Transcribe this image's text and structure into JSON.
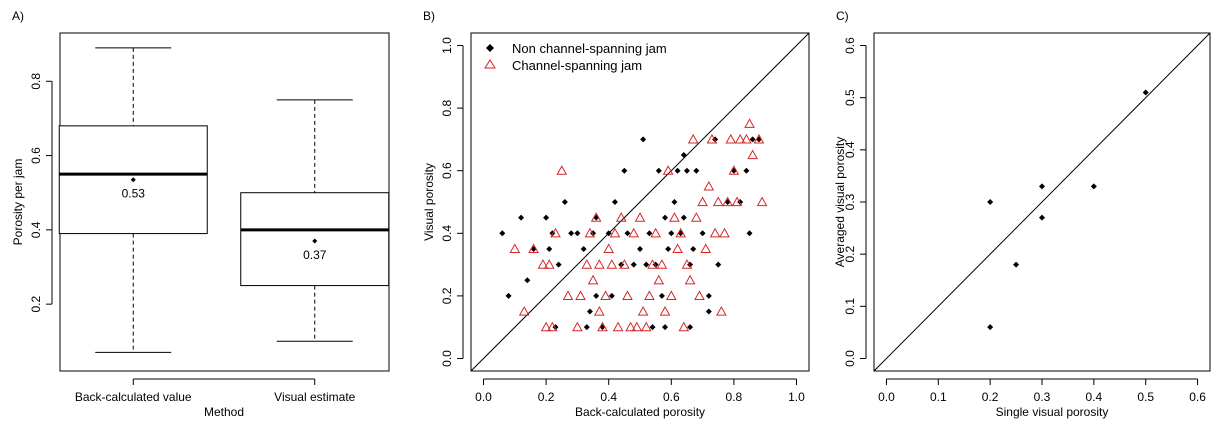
{
  "chart_data": [
    {
      "panel": "A)",
      "type": "box",
      "xlabel": "Method",
      "ylabel": "Porosity per jam",
      "ylim": [
        0.02,
        0.93
      ],
      "yticks": [
        0.2,
        0.4,
        0.6,
        0.8
      ],
      "categories": [
        "Back-calculated value",
        "Visual estimate"
      ],
      "boxes": [
        {
          "min": 0.07,
          "q1": 0.39,
          "median": 0.55,
          "q3": 0.68,
          "max": 0.89,
          "mean": 0.535,
          "mean_label": "0.53"
        },
        {
          "min": 0.1,
          "q1": 0.25,
          "median": 0.4,
          "q3": 0.5,
          "max": 0.75,
          "mean": 0.37,
          "mean_label": "0.37"
        }
      ]
    },
    {
      "panel": "B)",
      "type": "scatter",
      "xlabel": "Back-calculated porosity",
      "ylabel": "Visual porosity",
      "xlim": [
        -0.04,
        1.04
      ],
      "ylim": [
        -0.04,
        1.04
      ],
      "xticks": [
        0.0,
        0.2,
        0.4,
        0.6,
        0.8,
        1.0
      ],
      "yticks": [
        0.0,
        0.2,
        0.4,
        0.6,
        0.8,
        1.0
      ],
      "legend": {
        "position": "top-left",
        "entries": [
          "Non channel-spanning jam",
          "Channel-spanning jam"
        ]
      },
      "series": [
        {
          "name": "Non channel-spanning jam",
          "marker": "diamond",
          "color": "#000000",
          "points": [
            [
              0.06,
              0.4
            ],
            [
              0.08,
              0.2
            ],
            [
              0.12,
              0.45
            ],
            [
              0.14,
              0.25
            ],
            [
              0.16,
              0.35
            ],
            [
              0.2,
              0.45
            ],
            [
              0.21,
              0.35
            ],
            [
              0.22,
              0.4
            ],
            [
              0.23,
              0.1
            ],
            [
              0.24,
              0.3
            ],
            [
              0.26,
              0.5
            ],
            [
              0.28,
              0.4
            ],
            [
              0.3,
              0.4
            ],
            [
              0.32,
              0.35
            ],
            [
              0.33,
              0.1
            ],
            [
              0.34,
              0.15
            ],
            [
              0.35,
              0.4
            ],
            [
              0.36,
              0.45
            ],
            [
              0.36,
              0.2
            ],
            [
              0.38,
              0.1
            ],
            [
              0.4,
              0.4
            ],
            [
              0.41,
              0.2
            ],
            [
              0.42,
              0.5
            ],
            [
              0.44,
              0.3
            ],
            [
              0.45,
              0.6
            ],
            [
              0.46,
              0.4
            ],
            [
              0.48,
              0.3
            ],
            [
              0.5,
              0.35
            ],
            [
              0.51,
              0.7
            ],
            [
              0.52,
              0.3
            ],
            [
              0.53,
              0.4
            ],
            [
              0.54,
              0.1
            ],
            [
              0.55,
              0.3
            ],
            [
              0.56,
              0.6
            ],
            [
              0.57,
              0.2
            ],
            [
              0.58,
              0.45
            ],
            [
              0.58,
              0.1
            ],
            [
              0.59,
              0.35
            ],
            [
              0.6,
              0.4
            ],
            [
              0.61,
              0.5
            ],
            [
              0.62,
              0.6
            ],
            [
              0.63,
              0.4
            ],
            [
              0.64,
              0.65
            ],
            [
              0.64,
              0.45
            ],
            [
              0.65,
              0.6
            ],
            [
              0.66,
              0.3
            ],
            [
              0.66,
              0.1
            ],
            [
              0.67,
              0.35
            ],
            [
              0.68,
              0.6
            ],
            [
              0.7,
              0.4
            ],
            [
              0.72,
              0.2
            ],
            [
              0.72,
              0.15
            ],
            [
              0.74,
              0.7
            ],
            [
              0.75,
              0.3
            ],
            [
              0.78,
              0.5
            ],
            [
              0.8,
              0.6
            ],
            [
              0.82,
              0.5
            ],
            [
              0.84,
              0.6
            ],
            [
              0.85,
              0.4
            ],
            [
              0.86,
              0.7
            ],
            [
              0.88,
              0.7
            ]
          ]
        },
        {
          "name": "Channel-spanning jam",
          "color": "#d62728",
          "marker": "triangle-open",
          "points": [
            [
              0.1,
              0.35
            ],
            [
              0.13,
              0.15
            ],
            [
              0.16,
              0.35
            ],
            [
              0.19,
              0.3
            ],
            [
              0.2,
              0.1
            ],
            [
              0.21,
              0.3
            ],
            [
              0.22,
              0.1
            ],
            [
              0.23,
              0.4
            ],
            [
              0.25,
              0.6
            ],
            [
              0.27,
              0.2
            ],
            [
              0.3,
              0.1
            ],
            [
              0.31,
              0.2
            ],
            [
              0.33,
              0.3
            ],
            [
              0.34,
              0.4
            ],
            [
              0.35,
              0.25
            ],
            [
              0.36,
              0.45
            ],
            [
              0.37,
              0.15
            ],
            [
              0.37,
              0.3
            ],
            [
              0.38,
              0.1
            ],
            [
              0.39,
              0.2
            ],
            [
              0.4,
              0.35
            ],
            [
              0.41,
              0.3
            ],
            [
              0.42,
              0.4
            ],
            [
              0.43,
              0.1
            ],
            [
              0.44,
              0.45
            ],
            [
              0.45,
              0.3
            ],
            [
              0.46,
              0.2
            ],
            [
              0.47,
              0.1
            ],
            [
              0.48,
              0.4
            ],
            [
              0.49,
              0.1
            ],
            [
              0.5,
              0.45
            ],
            [
              0.51,
              0.15
            ],
            [
              0.52,
              0.1
            ],
            [
              0.53,
              0.2
            ],
            [
              0.54,
              0.3
            ],
            [
              0.55,
              0.4
            ],
            [
              0.56,
              0.25
            ],
            [
              0.57,
              0.3
            ],
            [
              0.58,
              0.15
            ],
            [
              0.59,
              0.6
            ],
            [
              0.6,
              0.2
            ],
            [
              0.61,
              0.45
            ],
            [
              0.62,
              0.35
            ],
            [
              0.63,
              0.4
            ],
            [
              0.64,
              0.1
            ],
            [
              0.65,
              0.3
            ],
            [
              0.66,
              0.25
            ],
            [
              0.67,
              0.7
            ],
            [
              0.68,
              0.45
            ],
            [
              0.69,
              0.2
            ],
            [
              0.7,
              0.5
            ],
            [
              0.71,
              0.35
            ],
            [
              0.72,
              0.55
            ],
            [
              0.73,
              0.7
            ],
            [
              0.74,
              0.4
            ],
            [
              0.75,
              0.5
            ],
            [
              0.76,
              0.15
            ],
            [
              0.77,
              0.4
            ],
            [
              0.78,
              0.5
            ],
            [
              0.79,
              0.7
            ],
            [
              0.8,
              0.6
            ],
            [
              0.81,
              0.5
            ],
            [
              0.82,
              0.7
            ],
            [
              0.84,
              0.7
            ],
            [
              0.85,
              0.75
            ],
            [
              0.86,
              0.65
            ],
            [
              0.88,
              0.7
            ],
            [
              0.89,
              0.5
            ]
          ]
        }
      ]
    },
    {
      "panel": "C)",
      "type": "scatter",
      "xlabel": "Single visual porosity",
      "ylabel": "Averaged visual porosity",
      "xlim": [
        -0.024,
        0.624
      ],
      "ylim": [
        -0.024,
        0.624
      ],
      "xticks": [
        0.0,
        0.1,
        0.2,
        0.3,
        0.4,
        0.5,
        0.6
      ],
      "yticks": [
        0.0,
        0.1,
        0.2,
        0.3,
        0.4,
        0.5,
        0.6
      ],
      "series": [
        {
          "marker": "diamond",
          "color": "#000000",
          "points": [
            [
              0.2,
              0.3
            ],
            [
              0.2,
              0.06
            ],
            [
              0.25,
              0.18
            ],
            [
              0.3,
              0.33
            ],
            [
              0.3,
              0.27
            ],
            [
              0.4,
              0.33
            ],
            [
              0.5,
              0.51
            ]
          ]
        }
      ]
    }
  ]
}
